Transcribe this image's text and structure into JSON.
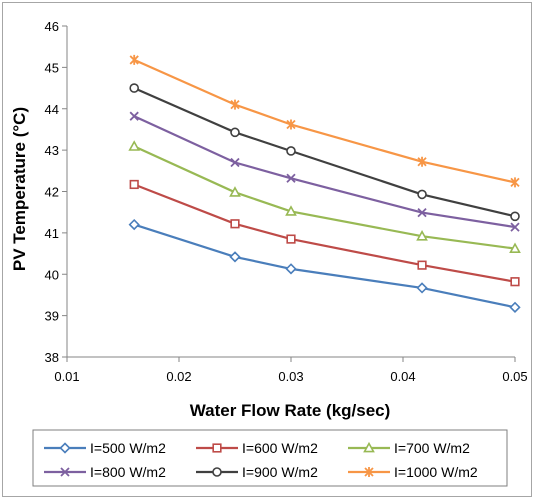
{
  "chart_data": {
    "type": "line",
    "title": "",
    "xlabel": "Water Flow Rate (kg/sec)",
    "ylabel": "PV Temperature (°C)",
    "xlim": [
      0.01,
      0.05
    ],
    "ylim": [
      38,
      46
    ],
    "x_ticks": [
      "0.01",
      "0.02",
      "0.03",
      "0.04",
      "0.05"
    ],
    "y_ticks": [
      "38",
      "39",
      "40",
      "41",
      "42",
      "43",
      "44",
      "45",
      "46"
    ],
    "grid": false,
    "legend_position": "bottom",
    "x": [
      0.016,
      0.025,
      0.03,
      0.0417,
      0.05
    ],
    "series": [
      {
        "name": "I=500 W/m2",
        "color": "#4a7ebb",
        "marker": "diamond",
        "values": [
          41.2,
          40.42,
          40.13,
          39.67,
          39.2
        ]
      },
      {
        "name": "I=600 W/m2",
        "color": "#be4b48",
        "marker": "square",
        "values": [
          42.17,
          41.22,
          40.85,
          40.22,
          39.82
        ]
      },
      {
        "name": "I=700 W/m2",
        "color": "#98b954",
        "marker": "triangle",
        "values": [
          43.09,
          41.98,
          41.52,
          40.92,
          40.62
        ]
      },
      {
        "name": "I=800 W/m2",
        "color": "#7d60a0",
        "marker": "x",
        "values": [
          43.82,
          42.7,
          42.32,
          41.49,
          41.14
        ]
      },
      {
        "name": "I=900 W/m2",
        "color": "#404040",
        "marker": "circle",
        "values": [
          44.5,
          43.43,
          42.98,
          41.93,
          41.4
        ]
      },
      {
        "name": "I=1000 W/m2",
        "color": "#f79646",
        "marker": "asterisk",
        "values": [
          45.18,
          44.1,
          43.62,
          42.72,
          42.22
        ]
      }
    ]
  }
}
